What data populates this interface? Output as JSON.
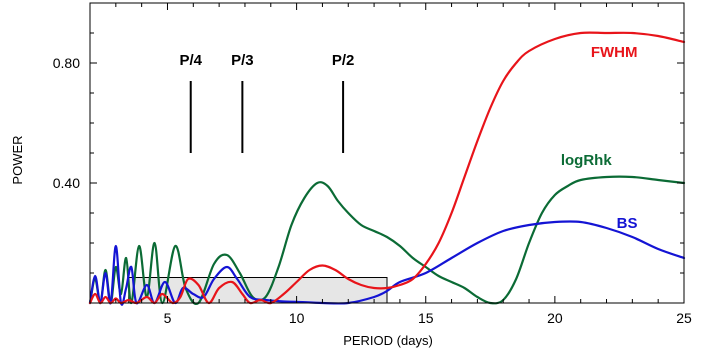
{
  "chart_data": {
    "type": "line",
    "xlabel": "PERIOD (days)",
    "ylabel": "POWER",
    "xlim": [
      2,
      25
    ],
    "ylim": [
      0,
      1.0
    ],
    "xticks": [
      5,
      10,
      15,
      20,
      25
    ],
    "yticks": [
      0.4,
      0.8
    ],
    "xtick_labels": [
      "5",
      "10",
      "15",
      "20",
      "25"
    ],
    "ytick_labels": [
      "0.40",
      "0.80"
    ],
    "grid": false,
    "series": [
      {
        "name": "FWHM",
        "color": "#e8141a",
        "points": [
          [
            2.0,
            0.0
          ],
          [
            2.2,
            0.03
          ],
          [
            2.4,
            0.0
          ],
          [
            2.6,
            0.02
          ],
          [
            2.8,
            0.0
          ],
          [
            3.0,
            0.015
          ],
          [
            3.2,
            0.0
          ],
          [
            3.5,
            0.01
          ],
          [
            3.8,
            0.0
          ],
          [
            4.2,
            0.02
          ],
          [
            4.5,
            0.0
          ],
          [
            4.8,
            0.03
          ],
          [
            5.2,
            0.0
          ],
          [
            5.5,
            0.02
          ],
          [
            5.8,
            0.08
          ],
          [
            6.2,
            0.06
          ],
          [
            6.6,
            0.0
          ],
          [
            7.0,
            0.05
          ],
          [
            7.5,
            0.07
          ],
          [
            7.9,
            0.03
          ],
          [
            8.2,
            0.0
          ],
          [
            8.6,
            0.01
          ],
          [
            9.0,
            0.0
          ],
          [
            9.5,
            0.03
          ],
          [
            10.0,
            0.07
          ],
          [
            10.5,
            0.11
          ],
          [
            11.0,
            0.125
          ],
          [
            11.5,
            0.11
          ],
          [
            12.0,
            0.08
          ],
          [
            12.5,
            0.06
          ],
          [
            13.0,
            0.05
          ],
          [
            13.5,
            0.05
          ],
          [
            14.0,
            0.06
          ],
          [
            14.5,
            0.08
          ],
          [
            15.0,
            0.13
          ],
          [
            15.5,
            0.2
          ],
          [
            16.0,
            0.3
          ],
          [
            16.5,
            0.42
          ],
          [
            17.0,
            0.54
          ],
          [
            17.5,
            0.65
          ],
          [
            18.0,
            0.74
          ],
          [
            18.5,
            0.8
          ],
          [
            19.0,
            0.84
          ],
          [
            20.0,
            0.88
          ],
          [
            21.0,
            0.9
          ],
          [
            22.0,
            0.9
          ],
          [
            23.0,
            0.9
          ],
          [
            24.0,
            0.89
          ],
          [
            25.0,
            0.87
          ]
        ]
      },
      {
        "name": "logRhk",
        "color": "#0b6b35",
        "points": [
          [
            2.0,
            0.0
          ],
          [
            2.2,
            0.08
          ],
          [
            2.4,
            0.0
          ],
          [
            2.6,
            0.11
          ],
          [
            2.8,
            0.0
          ],
          [
            3.0,
            0.12
          ],
          [
            3.2,
            0.03
          ],
          [
            3.4,
            0.15
          ],
          [
            3.6,
            0.0
          ],
          [
            3.9,
            0.19
          ],
          [
            4.2,
            0.02
          ],
          [
            4.5,
            0.2
          ],
          [
            4.8,
            0.0
          ],
          [
            5.3,
            0.19
          ],
          [
            5.7,
            0.05
          ],
          [
            6.2,
            0.0
          ],
          [
            6.8,
            0.13
          ],
          [
            7.3,
            0.16
          ],
          [
            7.8,
            0.1
          ],
          [
            8.3,
            0.02
          ],
          [
            8.8,
            0.02
          ],
          [
            9.3,
            0.12
          ],
          [
            9.8,
            0.26
          ],
          [
            10.3,
            0.35
          ],
          [
            10.8,
            0.4
          ],
          [
            11.2,
            0.39
          ],
          [
            11.6,
            0.34
          ],
          [
            12.0,
            0.3
          ],
          [
            12.5,
            0.26
          ],
          [
            13.0,
            0.24
          ],
          [
            13.5,
            0.22
          ],
          [
            14.0,
            0.19
          ],
          [
            14.5,
            0.15
          ],
          [
            15.0,
            0.12
          ],
          [
            15.5,
            0.09
          ],
          [
            16.0,
            0.07
          ],
          [
            16.5,
            0.05
          ],
          [
            17.0,
            0.02
          ],
          [
            17.5,
            0.0
          ],
          [
            18.0,
            0.01
          ],
          [
            18.5,
            0.08
          ],
          [
            19.0,
            0.2
          ],
          [
            19.5,
            0.3
          ],
          [
            20.0,
            0.36
          ],
          [
            20.5,
            0.39
          ],
          [
            21.0,
            0.41
          ],
          [
            22.0,
            0.42
          ],
          [
            23.0,
            0.42
          ],
          [
            24.0,
            0.41
          ],
          [
            25.0,
            0.4
          ]
        ]
      },
      {
        "name": "BS",
        "color": "#1414d4",
        "points": [
          [
            2.0,
            0.0
          ],
          [
            2.2,
            0.09
          ],
          [
            2.4,
            0.0
          ],
          [
            2.6,
            0.1
          ],
          [
            2.8,
            0.0
          ],
          [
            3.0,
            0.19
          ],
          [
            3.2,
            0.0
          ],
          [
            3.4,
            0.05
          ],
          [
            3.6,
            0.12
          ],
          [
            3.8,
            0.0
          ],
          [
            4.2,
            0.06
          ],
          [
            4.5,
            0.0
          ],
          [
            4.9,
            0.07
          ],
          [
            5.3,
            0.0
          ],
          [
            5.6,
            0.05
          ],
          [
            6.0,
            0.03
          ],
          [
            6.4,
            0.02
          ],
          [
            6.8,
            0.08
          ],
          [
            7.3,
            0.12
          ],
          [
            7.7,
            0.08
          ],
          [
            8.2,
            0.02
          ],
          [
            8.8,
            0.01
          ],
          [
            9.5,
            0.005
          ],
          [
            10.0,
            0.004
          ],
          [
            11.0,
            0.0
          ],
          [
            12.0,
            0.0
          ],
          [
            13.0,
            0.02
          ],
          [
            13.5,
            0.04
          ],
          [
            14.0,
            0.07
          ],
          [
            15.0,
            0.1
          ],
          [
            16.0,
            0.15
          ],
          [
            17.0,
            0.2
          ],
          [
            18.0,
            0.24
          ],
          [
            19.0,
            0.26
          ],
          [
            20.0,
            0.27
          ],
          [
            21.0,
            0.27
          ],
          [
            22.0,
            0.25
          ],
          [
            23.0,
            0.22
          ],
          [
            24.0,
            0.18
          ],
          [
            25.0,
            0.15
          ]
        ]
      }
    ],
    "series_labels": [
      {
        "text": "FWHM",
        "color": "#e8141a",
        "x": 23.2,
        "y": 0.82
      },
      {
        "text": "logRhk",
        "color": "#0b6b35",
        "x": 22.2,
        "y": 0.46
      },
      {
        "text": "BS",
        "color": "#1414d4",
        "x": 23.2,
        "y": 0.25
      }
    ],
    "annotations": [
      {
        "label": "P/4",
        "x": 5.9,
        "y_top": 0.74,
        "y_bottom": 0.5
      },
      {
        "label": "P/3",
        "x": 7.9,
        "y_top": 0.74,
        "y_bottom": 0.5
      },
      {
        "label": "P/2",
        "x": 11.8,
        "y_top": 0.74,
        "y_bottom": 0.5
      }
    ],
    "shaded_region": {
      "x0": 3.5,
      "x1": 13.5,
      "y0": 0.0,
      "y1": 0.085,
      "color": "#e6e6e6"
    }
  }
}
